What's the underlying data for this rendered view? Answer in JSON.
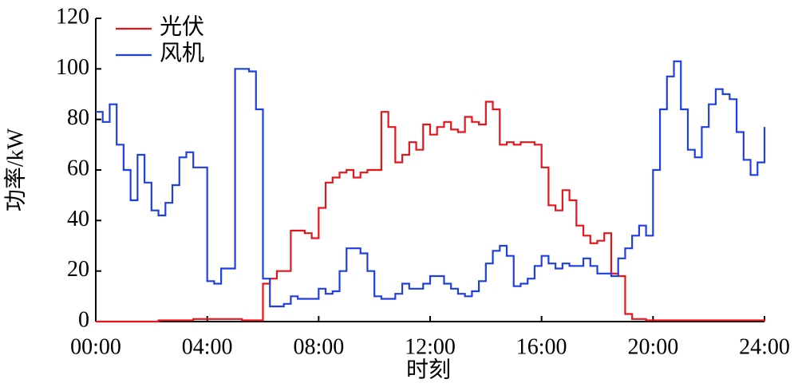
{
  "chart_data": {
    "type": "line",
    "step": "post",
    "x_label": "时刻",
    "y_label": "功率/kW",
    "x": [
      0,
      0.25,
      0.5,
      0.75,
      1,
      1.25,
      1.5,
      1.75,
      2,
      2.25,
      2.5,
      2.75,
      3,
      3.25,
      3.5,
      3.75,
      4,
      4.25,
      4.5,
      4.75,
      5,
      5.25,
      5.5,
      5.75,
      6,
      6.25,
      6.5,
      6.75,
      7,
      7.25,
      7.5,
      7.75,
      8,
      8.25,
      8.5,
      8.75,
      9,
      9.25,
      9.5,
      9.75,
      10,
      10.25,
      10.5,
      10.75,
      11,
      11.25,
      11.5,
      11.75,
      12,
      12.25,
      12.5,
      12.75,
      13,
      13.25,
      13.5,
      13.75,
      14,
      14.25,
      14.5,
      14.75,
      15,
      15.25,
      15.5,
      15.75,
      16,
      16.25,
      16.5,
      16.75,
      17,
      17.25,
      17.5,
      17.75,
      18,
      18.25,
      18.5,
      18.75,
      19,
      19.25,
      19.5,
      19.75,
      20,
      20.25,
      20.5,
      20.75,
      21,
      21.25,
      21.5,
      21.75,
      22,
      22.25,
      22.5,
      22.75,
      23,
      23.25,
      23.5,
      23.75,
      24
    ],
    "series": [
      {
        "name": "光伏",
        "color": "#e8141c",
        "values": [
          0,
          0,
          0,
          0,
          0,
          0,
          0,
          0,
          0,
          0.5,
          0.5,
          0.5,
          0.5,
          0.5,
          1,
          1,
          1,
          1,
          1,
          1,
          1,
          0.5,
          0.5,
          0.5,
          15,
          17,
          20,
          20,
          36,
          36,
          35,
          33,
          45,
          55,
          57,
          59,
          60,
          57,
          59,
          60,
          60,
          83,
          77,
          63,
          66,
          71,
          68,
          78,
          74,
          77,
          79,
          76,
          75,
          81,
          79,
          78,
          87,
          84,
          70,
          71,
          70,
          71,
          71,
          70,
          61,
          46,
          44,
          52,
          48,
          38,
          34,
          31,
          32,
          35,
          19,
          18,
          3,
          1,
          1,
          0.5,
          0.5,
          0.5,
          0.5,
          0.5,
          0.5,
          0.5,
          0.5,
          0.5,
          0.5,
          0.5,
          0.5,
          0.5,
          0.5,
          0.5,
          0.5,
          0.5,
          0
        ]
      },
      {
        "name": "风机",
        "color": "#1f3fe0",
        "values": [
          83,
          79,
          86,
          70,
          60,
          48,
          66,
          55,
          44,
          42,
          47,
          54,
          65,
          67,
          61,
          61,
          16,
          15,
          21,
          21,
          100,
          100,
          99,
          84,
          17,
          6,
          6,
          7,
          10,
          9,
          9,
          9,
          13,
          11,
          12,
          20,
          29,
          29,
          27,
          20,
          10,
          9,
          9,
          11,
          15,
          13,
          13,
          15,
          18,
          18,
          15,
          13,
          11,
          10,
          12,
          16,
          23,
          28,
          30,
          26,
          14,
          15,
          17,
          22,
          26,
          23,
          21,
          23,
          22,
          22,
          25,
          22,
          19,
          19,
          18,
          25,
          29,
          34,
          38,
          34,
          60,
          84,
          97,
          103,
          84,
          68,
          65,
          77,
          86,
          92,
          90,
          88,
          75,
          64,
          58,
          63,
          77
        ]
      }
    ],
    "xlim": [
      0,
      24
    ],
    "xticks": [
      {
        "value": 0,
        "label": "00:00"
      },
      {
        "value": 4,
        "label": "04:00"
      },
      {
        "value": 8,
        "label": "08:00"
      },
      {
        "value": 12,
        "label": "12:00"
      },
      {
        "value": 16,
        "label": "16:00"
      },
      {
        "value": 20,
        "label": "20:00"
      },
      {
        "value": 24,
        "label": "24:00"
      }
    ],
    "ylim": [
      0,
      120
    ],
    "yticks": [
      0,
      20,
      40,
      60,
      80,
      100,
      120
    ],
    "grid": false,
    "legend": "upper left"
  }
}
